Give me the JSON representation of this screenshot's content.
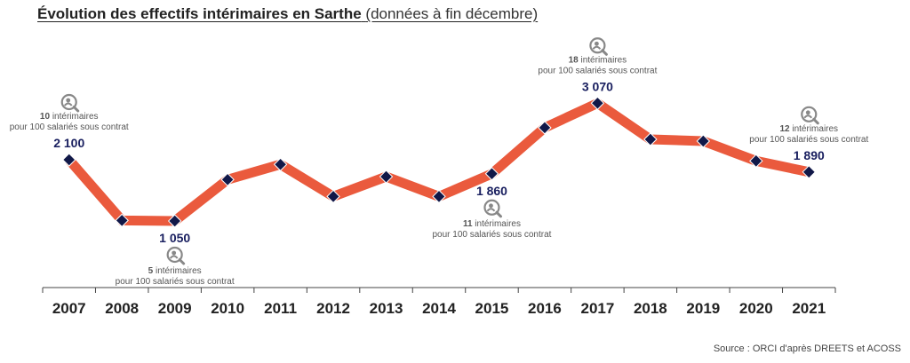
{
  "title": {
    "main": "Évolution des effectifs intérimaires en Sarthe",
    "sub": "(données à fin décembre)"
  },
  "source": "Source : ORCI d'après DREETS et ACOSS",
  "colors": {
    "line": "#ea5a3d",
    "marker": "#111848",
    "value_label": "#1a2060",
    "icon": "#888888"
  },
  "chart_data": {
    "type": "line",
    "categories": [
      "2007",
      "2008",
      "2009",
      "2010",
      "2011",
      "2012",
      "2013",
      "2014",
      "2015",
      "2016",
      "2017",
      "2018",
      "2019",
      "2020",
      "2021"
    ],
    "values": [
      2100,
      1060,
      1050,
      1760,
      2020,
      1470,
      1810,
      1470,
      1860,
      2650,
      3070,
      2450,
      2420,
      2080,
      1890
    ],
    "ylim": [
      0,
      3500
    ],
    "grid": false,
    "legend": "none",
    "value_labels": [
      {
        "index": 0,
        "text": "2 100",
        "position": "above"
      },
      {
        "index": 2,
        "text": "1 050",
        "position": "below"
      },
      {
        "index": 8,
        "text": "1 860",
        "position": "below"
      },
      {
        "index": 10,
        "text": "3 070",
        "position": "above"
      },
      {
        "index": 14,
        "text": "1 890",
        "position": "above"
      }
    ],
    "annotations": [
      {
        "index": 0,
        "icon": "magnifier-person-icon",
        "number": "10",
        "line1": "intérimaires",
        "line2": "pour 100 salariés sous contrat",
        "position": "above"
      },
      {
        "index": 2,
        "icon": "magnifier-person-icon",
        "number": "5",
        "line1": "intérimaires",
        "line2": "pour 100 salariés sous contrat",
        "position": "below"
      },
      {
        "index": 8,
        "icon": "magnifier-person-icon",
        "number": "11",
        "line1": "intérimaires",
        "line2": "pour 100 salariés sous contrat",
        "position": "below"
      },
      {
        "index": 10,
        "icon": "magnifier-person-icon",
        "number": "18",
        "line1": "intérimaires",
        "line2": "pour 100 salariés sous contrat",
        "position": "above"
      },
      {
        "index": 14,
        "icon": "magnifier-person-icon",
        "number": "12",
        "line1": "intérimaires",
        "line2": "pour 100 salariés sous contrat",
        "position": "above"
      }
    ]
  }
}
